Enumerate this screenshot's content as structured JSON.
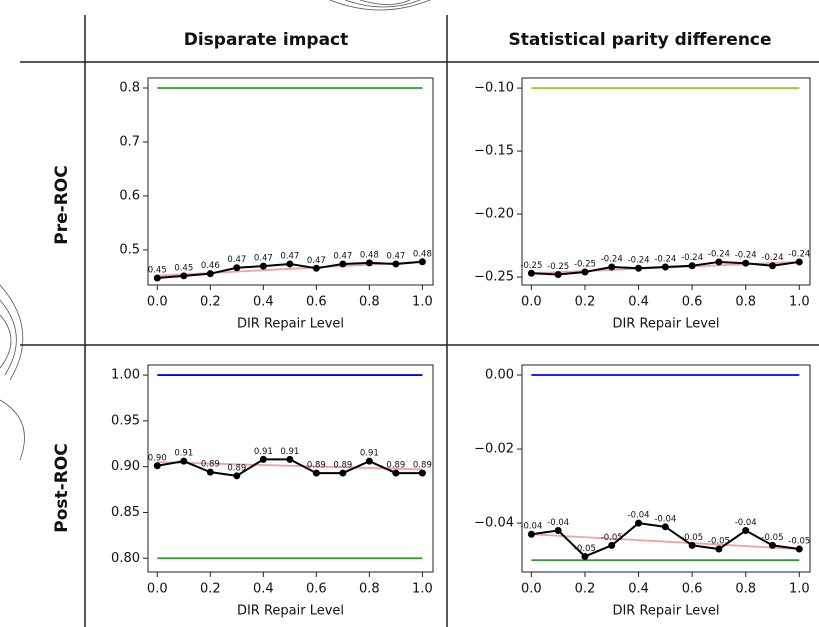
{
  "table": {
    "columns": [
      "Disparate impact",
      "Statistical parity difference"
    ],
    "rows": [
      "Pre-ROC",
      "Post-ROC"
    ]
  },
  "chart_data": [
    {
      "type": "line",
      "xlabel": "DIR Repair Level",
      "x": [
        0,
        0.1,
        0.2,
        0.3,
        0.4,
        0.5,
        0.6,
        0.7,
        0.8,
        0.9,
        1
      ],
      "series": [
        {
          "color": "#000000",
          "values": [
            0.448,
            0.452,
            0.456,
            0.467,
            0.47,
            0.474,
            0.466,
            0.474,
            0.476,
            0.474,
            0.478
          ],
          "value_labels": [
            "0.45",
            "0.45",
            "0.46",
            "0.47",
            "0.47",
            "0.47",
            "0.47",
            "0.47",
            "0.48",
            "0.47",
            "0.48"
          ]
        }
      ],
      "trend": {
        "color": "#f4a0a0",
        "x": [
          0,
          1
        ],
        "values": [
          0.452,
          0.478
        ]
      },
      "hlines": [
        {
          "value": 0.8,
          "color": "#2ca02c"
        }
      ],
      "xlim": [
        -0.035,
        1.04
      ],
      "ylim": [
        0.435,
        0.8185
      ],
      "xticks": [
        {
          "value": 0,
          "label": "0.0"
        },
        0.2,
        0.4,
        0.6,
        0.8,
        {
          "value": 1,
          "label": "1.0"
        }
      ],
      "yticks": [
        0.5,
        0.6,
        0.7,
        0.8
      ]
    },
    {
      "type": "line",
      "xlabel": "DIR Repair Level",
      "x": [
        0,
        0.1,
        0.2,
        0.3,
        0.4,
        0.5,
        0.6,
        0.7,
        0.8,
        0.9,
        1
      ],
      "series": [
        {
          "color": "#000000",
          "values": [
            -0.247,
            -0.248,
            -0.246,
            -0.242,
            -0.243,
            -0.242,
            -0.241,
            -0.238,
            -0.239,
            -0.241,
            -0.238
          ],
          "value_labels": [
            "-0.25",
            "-0.25",
            "-0.25",
            "-0.24",
            "-0.24",
            "-0.24",
            "-0.24",
            "-0.24",
            "-0.24",
            "-0.24",
            "-0.24"
          ]
        }
      ],
      "trend": {
        "color": "#f4a0a0",
        "x": [
          0,
          1
        ],
        "values": [
          -0.247,
          -0.238
        ]
      },
      "hlines": [
        {
          "value": -0.1,
          "color": "#9acd32"
        }
      ],
      "xlim": [
        -0.035,
        1.04
      ],
      "ylim": [
        -0.2563,
        -0.092
      ],
      "xticks": [
        {
          "value": 0,
          "label": "0.0"
        },
        0.2,
        0.4,
        0.6,
        0.8,
        {
          "value": 1,
          "label": "1.0"
        }
      ],
      "yticks": [
        {
          "value": -0.1,
          "label": "−0.10"
        },
        {
          "value": -0.15,
          "label": "−0.15"
        },
        {
          "value": -0.2,
          "label": "−0.20"
        },
        {
          "value": -0.25,
          "label": "−0.25"
        }
      ]
    },
    {
      "type": "line",
      "xlabel": "DIR Repair Level",
      "x": [
        0,
        0.1,
        0.2,
        0.3,
        0.4,
        0.5,
        0.6,
        0.7,
        0.8,
        0.9,
        1
      ],
      "series": [
        {
          "color": "#000000",
          "values": [
            0.901,
            0.906,
            0.894,
            0.89,
            0.908,
            0.908,
            0.893,
            0.893,
            0.906,
            0.893,
            0.893
          ],
          "value_labels": [
            "0.90",
            "0.91",
            "0.89",
            "0.89",
            "0.91",
            "0.91",
            "0.89",
            "0.89",
            "0.91",
            "0.89",
            "0.89"
          ]
        }
      ],
      "trend": {
        "color": "#f4a0a0",
        "x": [
          0,
          1
        ],
        "values": [
          0.905,
          0.897
        ]
      },
      "hlines": [
        {
          "value": 1,
          "color": "#0000ff"
        },
        {
          "value": 0.8,
          "color": "#2ca02c"
        }
      ],
      "xlim": [
        -0.035,
        1.04
      ],
      "ylim": [
        0.785,
        1.011
      ],
      "xticks": [
        {
          "value": 0,
          "label": "0.0"
        },
        0.2,
        0.4,
        0.6,
        0.8,
        {
          "value": 1,
          "label": "1.0"
        }
      ],
      "yticks": [
        {
          "value": 0.8,
          "label": "0.80"
        },
        0.85,
        {
          "value": 0.9,
          "label": "0.90"
        },
        0.95,
        {
          "value": 1,
          "label": "1.00"
        }
      ]
    },
    {
      "type": "line",
      "xlabel": "DIR Repair Level",
      "x": [
        0,
        0.1,
        0.2,
        0.3,
        0.4,
        0.5,
        0.6,
        0.7,
        0.8,
        0.9,
        1
      ],
      "series": [
        {
          "color": "#000000",
          "values": [
            -0.043,
            -0.042,
            -0.049,
            -0.046,
            -0.04,
            -0.041,
            -0.046,
            -0.047,
            -0.042,
            -0.046,
            -0.047
          ],
          "value_labels": [
            "-0.04",
            "-0.04",
            "-0.05",
            "-0.05",
            "-0.04",
            "-0.04",
            "-0.05",
            "-0.05",
            "-0.04",
            "-0.05",
            "-0.05"
          ]
        }
      ],
      "trend": {
        "color": "#f4a0a0",
        "x": [
          0,
          1
        ],
        "values": [
          -0.043,
          -0.047
        ]
      },
      "hlines": [
        {
          "value": 0,
          "color": "#0000ff"
        },
        {
          "value": -0.05,
          "color": "#2ca02c"
        }
      ],
      "xlim": [
        -0.035,
        1.04
      ],
      "ylim": [
        -0.0532,
        0.0027
      ],
      "xticks": [
        {
          "value": 0,
          "label": "0.0"
        },
        0.2,
        0.4,
        0.6,
        0.8,
        {
          "value": 1,
          "label": "1.0"
        }
      ],
      "yticks": [
        {
          "value": 0,
          "label": "0.00"
        },
        {
          "value": -0.02,
          "label": "−0.02"
        },
        {
          "value": -0.04,
          "label": "−0.04"
        }
      ]
    }
  ]
}
